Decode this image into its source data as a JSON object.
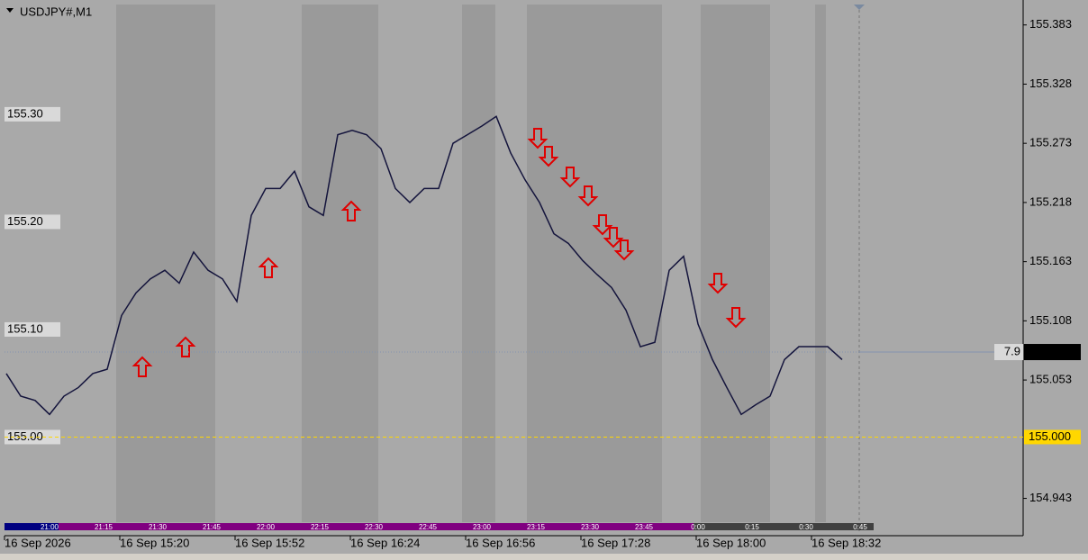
{
  "chart_data": {
    "type": "line",
    "title": "USDJPY#,M1",
    "categories": [
      "16 Sep 2026",
      null,
      null,
      null,
      null,
      null,
      null,
      null,
      "16 Sep 15:20",
      null,
      null,
      null,
      null,
      null,
      null,
      null,
      "16 Sep 15:52",
      null,
      null,
      null,
      null,
      null,
      null,
      null,
      "16 Sep 16:24",
      null,
      null,
      null,
      null,
      null,
      null,
      null,
      "16 Sep 16:56",
      null,
      null,
      null,
      null,
      null,
      null,
      null,
      "16 Sep 17:28",
      null,
      null,
      null,
      null,
      null,
      null,
      null,
      "16 Sep 18:00",
      null,
      null,
      null,
      null,
      null,
      null,
      null,
      "16 Sep 18:32",
      null,
      null
    ],
    "series": [
      {
        "color": "#14143c",
        "values": [
          155.059,
          155.038,
          155.034,
          155.021,
          155.038,
          155.046,
          155.059,
          155.063,
          155.113,
          155.134,
          155.147,
          155.155,
          155.143,
          155.172,
          155.155,
          155.147,
          155.126,
          155.206,
          155.231,
          155.231,
          155.247,
          155.214,
          155.206,
          155.281,
          155.285,
          155.281,
          155.268,
          155.231,
          155.218,
          155.231,
          155.231,
          155.273,
          155.281,
          155.289,
          155.298,
          155.264,
          155.239,
          155.218,
          155.189,
          155.18,
          155.164,
          155.151,
          155.139,
          155.118,
          155.084,
          155.088,
          155.155,
          155.168,
          155.105,
          155.072,
          155.046,
          155.021,
          155.03,
          155.038,
          155.072,
          155.084,
          155.084,
          155.084,
          155.072
        ]
      }
    ],
    "ylim": [
      154.91,
      155.402
    ],
    "yticks": [
      154.943,
      155.053,
      155.108,
      155.163,
      155.218,
      155.273,
      155.328,
      155.383
    ],
    "level_labels": [
      {
        "value": 155.3,
        "label": "155.30"
      },
      {
        "value": 155.2,
        "label": "155.20"
      },
      {
        "value": 155.1,
        "label": "155.10"
      },
      {
        "value": 155,
        "label": "155.00"
      }
    ],
    "current_price": 155.079,
    "spread": 7.9,
    "target_level": {
      "value": 155,
      "label": "155.000"
    },
    "session_bar_labels": [
      "21:00",
      "21:15",
      "21:30",
      "21:45",
      "22:00",
      "22:15",
      "22:30",
      "22:45",
      "23:00",
      "23:15",
      "23:30",
      "23:45",
      "0:00",
      "0:15",
      "0:30",
      "0:45"
    ]
  }
}
